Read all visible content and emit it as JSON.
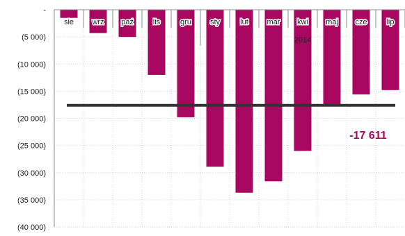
{
  "chart_data": {
    "type": "bar",
    "categories": [
      "sie",
      "wrz",
      "paź",
      "lis",
      "gru",
      "sty",
      "lut",
      "mar",
      "kwi",
      "maj",
      "cze",
      "lip"
    ],
    "values": [
      -1500,
      -4300,
      -5000,
      -12000,
      -19800,
      -28900,
      -33700,
      -31600,
      -26000,
      -17800,
      -15600,
      -14800
    ],
    "year_label": "2014",
    "average_value": -17611,
    "average_label": "-17 611",
    "ylim": [
      -40000,
      0
    ],
    "y_ticks": [
      0,
      -5000,
      -10000,
      -15000,
      -20000,
      -25000,
      -30000,
      -35000,
      -40000
    ],
    "y_tick_labels": [
      "-",
      "(5 000)",
      "(10 000)",
      "(15 000)",
      "(20 000)",
      "(25 000)",
      "(30 000)",
      "(35 000)",
      "(40 000)"
    ],
    "grid": true,
    "bar_color": "#a8075f",
    "line_color": "#333333",
    "label_color": "#a8075f"
  }
}
